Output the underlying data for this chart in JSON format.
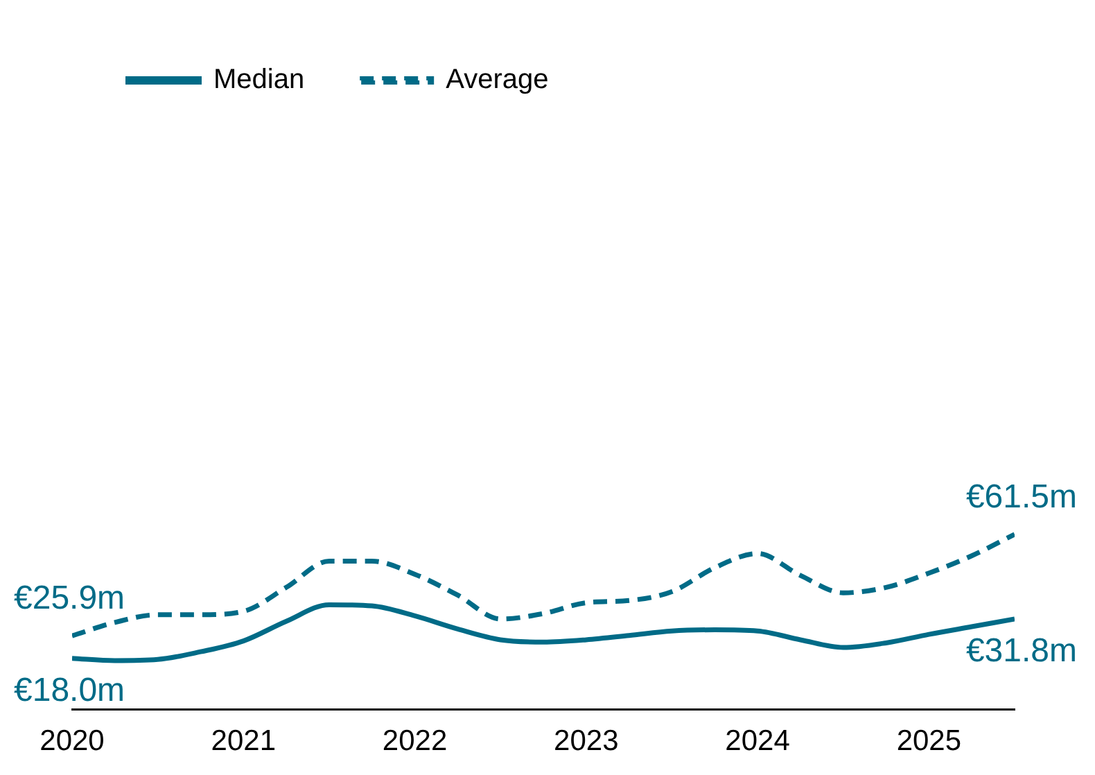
{
  "chart_data": {
    "type": "line",
    "x": [
      2020,
      2020.25,
      2020.5,
      2020.75,
      2021,
      2021.25,
      2021.5,
      2021.75,
      2022,
      2022.25,
      2022.5,
      2022.75,
      2023,
      2023.25,
      2023.5,
      2023.75,
      2024,
      2024.25,
      2024.5,
      2024.75,
      2025,
      2025.25,
      2025.5
    ],
    "series": [
      {
        "name": "Median",
        "color": "#006b87",
        "line_style": "solid",
        "values": [
          18.0,
          17.2,
          17.6,
          20.3,
          24.1,
          31.0,
          36.8,
          36.4,
          32.9,
          28.3,
          24.5,
          23.7,
          24.5,
          26.0,
          27.6,
          28.0,
          27.6,
          24.5,
          21.8,
          23.4,
          26.4,
          29.1,
          31.8
        ],
        "value_labels": [
          "€18.0m",
          null,
          null,
          null,
          null,
          null,
          null,
          null,
          null,
          null,
          null,
          null,
          null,
          null,
          null,
          null,
          null,
          null,
          null,
          null,
          null,
          null,
          "€31.8m"
        ]
      },
      {
        "name": "Average",
        "color": "#006b87",
        "line_style": "dashed",
        "values": [
          25.9,
          30.6,
          33.3,
          33.3,
          34.5,
          42.9,
          52.1,
          52.1,
          47.5,
          40.2,
          31.8,
          33.7,
          37.5,
          38.3,
          41.4,
          49.8,
          54.8,
          47.1,
          41.0,
          42.9,
          47.9,
          54.0,
          61.5
        ],
        "value_labels": [
          "€25.9m",
          null,
          null,
          null,
          null,
          null,
          null,
          null,
          null,
          null,
          null,
          null,
          null,
          null,
          null,
          null,
          null,
          null,
          null,
          null,
          null,
          null,
          "€61.5m"
        ]
      }
    ],
    "xlim": [
      2020,
      2025.5
    ],
    "xticks": [
      2020,
      2021,
      2022,
      2023,
      2024,
      2025
    ],
    "tick_labels": "x",
    "grid": false,
    "legend": "top left",
    "marker": "none"
  }
}
